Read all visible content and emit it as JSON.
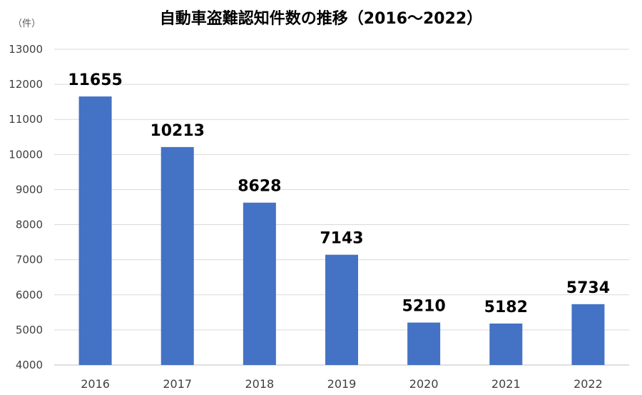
{
  "chart_data": {
    "type": "bar",
    "title": "自動車盗難認知件数の推移（2016〜2022）",
    "unit_label": "（件）",
    "xlabel": "",
    "ylabel": "",
    "categories": [
      "2016",
      "2017",
      "2018",
      "2019",
      "2020",
      "2021",
      "2022"
    ],
    "values": [
      11655,
      10213,
      8628,
      7143,
      5210,
      5182,
      5734
    ],
    "ylim": [
      4000,
      13000
    ],
    "yticks": [
      "4000",
      "5000",
      "6000",
      "7000",
      "8000",
      "9000",
      "10000",
      "11000",
      "12000",
      "13000"
    ],
    "grid": true,
    "legend": "none",
    "bar_color": "#4472C4",
    "grid_color": "#d9d9d9"
  }
}
